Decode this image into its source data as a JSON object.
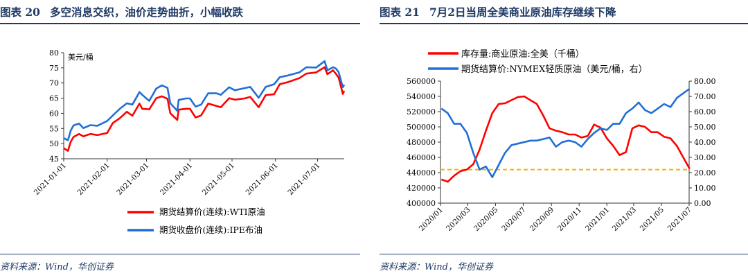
{
  "left": {
    "figure_no": "图表 20",
    "figure_title": "多空消息交织，油价走势曲折，小幅收跌",
    "source": "资料来源：Wind，华创证券",
    "chart_data": {
      "type": "line",
      "yunit": "美元/桶",
      "ylim": [
        45,
        80
      ],
      "yticks": [
        "45",
        "50",
        "55",
        "60",
        "65",
        "70",
        "75",
        "80"
      ],
      "x_range": [
        "2021-01-01",
        "2021-07-20"
      ],
      "xticks": [
        "2021-01-01",
        "2021-02-01",
        "2021-03-01",
        "2021-04-01",
        "2021-05-01",
        "2021-06-01",
        "2021-07-01"
      ],
      "legend_position": "bottom",
      "series": [
        {
          "name": "期货结算价(连续):WTI原油",
          "color": "#ff0000",
          "points": [
            [
              "2021-01-01",
              48.5
            ],
            [
              "2021-01-04",
              47.6
            ],
            [
              "2021-01-06",
              50.6
            ],
            [
              "2021-01-08",
              52.2
            ],
            [
              "2021-01-12",
              53.2
            ],
            [
              "2021-01-15",
              52.4
            ],
            [
              "2021-01-20",
              53.2
            ],
            [
              "2021-01-25",
              52.8
            ],
            [
              "2021-02-01",
              53.5
            ],
            [
              "2021-02-05",
              56.8
            ],
            [
              "2021-02-10",
              58.4
            ],
            [
              "2021-02-15",
              60.5
            ],
            [
              "2021-02-19",
              59.2
            ],
            [
              "2021-02-24",
              63.2
            ],
            [
              "2021-02-26",
              61.5
            ],
            [
              "2021-03-03",
              61.3
            ],
            [
              "2021-03-08",
              65.0
            ],
            [
              "2021-03-12",
              65.6
            ],
            [
              "2021-03-16",
              64.8
            ],
            [
              "2021-03-18",
              60.0
            ],
            [
              "2021-03-23",
              57.8
            ],
            [
              "2021-03-24",
              61.2
            ],
            [
              "2021-03-29",
              61.5
            ],
            [
              "2021-04-01",
              61.5
            ],
            [
              "2021-04-05",
              58.6
            ],
            [
              "2021-04-09",
              59.3
            ],
            [
              "2021-04-14",
              63.2
            ],
            [
              "2021-04-20",
              62.4
            ],
            [
              "2021-04-23",
              62.0
            ],
            [
              "2021-04-29",
              65.0
            ],
            [
              "2021-05-03",
              64.5
            ],
            [
              "2021-05-10",
              64.9
            ],
            [
              "2021-05-14",
              65.4
            ],
            [
              "2021-05-20",
              62.0
            ],
            [
              "2021-05-25",
              66.0
            ],
            [
              "2021-05-31",
              66.3
            ],
            [
              "2021-06-04",
              69.6
            ],
            [
              "2021-06-10",
              70.3
            ],
            [
              "2021-06-18",
              71.6
            ],
            [
              "2021-06-23",
              73.1
            ],
            [
              "2021-06-30",
              73.5
            ],
            [
              "2021-07-06",
              75.2
            ],
            [
              "2021-07-08",
              72.9
            ],
            [
              "2021-07-12",
              74.2
            ],
            [
              "2021-07-14",
              73.1
            ],
            [
              "2021-07-16",
              71.8
            ],
            [
              "2021-07-19",
              66.4
            ],
            [
              "2021-07-20",
              67.4
            ]
          ]
        },
        {
          "name": "期货收盘价(连续):IPE布油",
          "color": "#1f6fd6",
          "points": [
            [
              "2021-01-01",
              51.8
            ],
            [
              "2021-01-04",
              51.1
            ],
            [
              "2021-01-06",
              54.3
            ],
            [
              "2021-01-08",
              56.0
            ],
            [
              "2021-01-12",
              56.6
            ],
            [
              "2021-01-15",
              55.1
            ],
            [
              "2021-01-20",
              56.1
            ],
            [
              "2021-01-25",
              55.9
            ],
            [
              "2021-02-01",
              57.5
            ],
            [
              "2021-02-05",
              59.3
            ],
            [
              "2021-02-10",
              61.5
            ],
            [
              "2021-02-15",
              63.3
            ],
            [
              "2021-02-19",
              62.9
            ],
            [
              "2021-02-24",
              67.0
            ],
            [
              "2021-02-26",
              66.1
            ],
            [
              "2021-03-03",
              64.1
            ],
            [
              "2021-03-08",
              68.2
            ],
            [
              "2021-03-12",
              69.2
            ],
            [
              "2021-03-16",
              68.4
            ],
            [
              "2021-03-18",
              63.3
            ],
            [
              "2021-03-23",
              60.8
            ],
            [
              "2021-03-24",
              64.4
            ],
            [
              "2021-03-29",
              64.9
            ],
            [
              "2021-04-01",
              64.9
            ],
            [
              "2021-04-05",
              62.2
            ],
            [
              "2021-04-09",
              62.9
            ],
            [
              "2021-04-14",
              66.6
            ],
            [
              "2021-04-20",
              66.6
            ],
            [
              "2021-04-23",
              66.1
            ],
            [
              "2021-04-29",
              68.6
            ],
            [
              "2021-05-03",
              67.6
            ],
            [
              "2021-05-10",
              68.3
            ],
            [
              "2021-05-14",
              68.7
            ],
            [
              "2021-05-20",
              65.1
            ],
            [
              "2021-05-25",
              68.7
            ],
            [
              "2021-05-31",
              69.6
            ],
            [
              "2021-06-04",
              71.9
            ],
            [
              "2021-06-10",
              72.5
            ],
            [
              "2021-06-18",
              73.5
            ],
            [
              "2021-06-23",
              75.2
            ],
            [
              "2021-06-30",
              75.1
            ],
            [
              "2021-07-06",
              77.2
            ],
            [
              "2021-07-08",
              74.2
            ],
            [
              "2021-07-12",
              75.2
            ],
            [
              "2021-07-14",
              74.8
            ],
            [
              "2021-07-16",
              73.6
            ],
            [
              "2021-07-19",
              68.6
            ],
            [
              "2021-07-20",
              69.4
            ]
          ]
        }
      ]
    }
  },
  "right": {
    "figure_no": "图表 21",
    "figure_title": "7月2日当周全美商业原油库存继续下降",
    "source": "资料来源：Wind，华创证券",
    "chart_data": {
      "type": "line",
      "x_range": [
        "2020-01",
        "2021-07"
      ],
      "xticks": [
        "2020/01",
        "2020/03",
        "2020/05",
        "2020/07",
        "2020/09",
        "2020/11",
        "2021/01",
        "2021/03",
        "2021/05",
        "2021/07"
      ],
      "ylim_left": [
        400000,
        560000
      ],
      "yticks_left": [
        "400000",
        "420000",
        "440000",
        "460000",
        "480000",
        "500000",
        "520000",
        "540000",
        "560000"
      ],
      "ylim_right": [
        0,
        80
      ],
      "yticks_right": [
        "0.00",
        "10.00",
        "20.00",
        "30.00",
        "40.00",
        "50.00",
        "60.00",
        "70.00",
        "80.00"
      ],
      "legend_position": "top",
      "reference_line": {
        "axis": "left",
        "value": 444000,
        "color": "#f5b800",
        "style": "dashed"
      },
      "series": [
        {
          "name": "库存量:商业原油:全美（千桶）",
          "axis": "left",
          "color": "#ff0000",
          "points": [
            [
              "2020-01-03",
              431000
            ],
            [
              "2020-01-17",
              428000
            ],
            [
              "2020-01-31",
              436000
            ],
            [
              "2020-02-14",
              442000
            ],
            [
              "2020-02-28",
              444000
            ],
            [
              "2020-03-13",
              451000
            ],
            [
              "2020-03-27",
              470000
            ],
            [
              "2020-04-10",
              495000
            ],
            [
              "2020-04-24",
              518000
            ],
            [
              "2020-05-08",
              530000
            ],
            [
              "2020-05-22",
              531000
            ],
            [
              "2020-06-05",
              535000
            ],
            [
              "2020-06-19",
              539000
            ],
            [
              "2020-07-03",
              540000
            ],
            [
              "2020-07-17",
              535000
            ],
            [
              "2020-07-31",
              530000
            ],
            [
              "2020-08-14",
              515000
            ],
            [
              "2020-08-28",
              498000
            ],
            [
              "2020-09-11",
              495000
            ],
            [
              "2020-09-25",
              493000
            ],
            [
              "2020-10-09",
              490000
            ],
            [
              "2020-10-23",
              490000
            ],
            [
              "2020-11-06",
              486000
            ],
            [
              "2020-11-20",
              488000
            ],
            [
              "2020-12-04",
              503000
            ],
            [
              "2020-12-18",
              499000
            ],
            [
              "2021-01-01",
              485000
            ],
            [
              "2021-01-15",
              475000
            ],
            [
              "2021-01-29",
              463000
            ],
            [
              "2021-02-12",
              467000
            ],
            [
              "2021-02-26",
              498000
            ],
            [
              "2021-03-12",
              502000
            ],
            [
              "2021-03-26",
              500000
            ],
            [
              "2021-04-09",
              493000
            ],
            [
              "2021-04-23",
              493000
            ],
            [
              "2021-05-07",
              487000
            ],
            [
              "2021-05-21",
              485000
            ],
            [
              "2021-06-04",
              475000
            ],
            [
              "2021-06-18",
              460000
            ],
            [
              "2021-07-02",
              445000
            ]
          ]
        },
        {
          "name": "期货结算价:NYMEX轻质原油（美元/桶，右）",
          "axis": "right",
          "color": "#1f6fd6",
          "points": [
            [
              "2020-01-03",
              62
            ],
            [
              "2020-01-17",
              59
            ],
            [
              "2020-01-31",
              52
            ],
            [
              "2020-02-14",
              52
            ],
            [
              "2020-02-28",
              46
            ],
            [
              "2020-03-13",
              33
            ],
            [
              "2020-03-27",
              22
            ],
            [
              "2020-04-10",
              24
            ],
            [
              "2020-04-24",
              17
            ],
            [
              "2020-05-08",
              25
            ],
            [
              "2020-05-22",
              33
            ],
            [
              "2020-06-05",
              38
            ],
            [
              "2020-06-19",
              39
            ],
            [
              "2020-07-03",
              40
            ],
            [
              "2020-07-17",
              41
            ],
            [
              "2020-07-31",
              41
            ],
            [
              "2020-08-14",
              42
            ],
            [
              "2020-08-28",
              43
            ],
            [
              "2020-09-11",
              37
            ],
            [
              "2020-09-25",
              40
            ],
            [
              "2020-10-09",
              41
            ],
            [
              "2020-10-23",
              40
            ],
            [
              "2020-11-06",
              37
            ],
            [
              "2020-11-20",
              42
            ],
            [
              "2020-12-04",
              46
            ],
            [
              "2020-12-18",
              49
            ],
            [
              "2021-01-01",
              48
            ],
            [
              "2021-01-15",
              52
            ],
            [
              "2021-01-29",
              52
            ],
            [
              "2021-02-12",
              59
            ],
            [
              "2021-02-26",
              62
            ],
            [
              "2021-03-12",
              66
            ],
            [
              "2021-03-26",
              61
            ],
            [
              "2021-04-09",
              59
            ],
            [
              "2021-04-23",
              62
            ],
            [
              "2021-05-07",
              65
            ],
            [
              "2021-05-21",
              63
            ],
            [
              "2021-06-04",
              69
            ],
            [
              "2021-06-18",
              72
            ],
            [
              "2021-07-02",
              75
            ]
          ]
        }
      ]
    }
  }
}
